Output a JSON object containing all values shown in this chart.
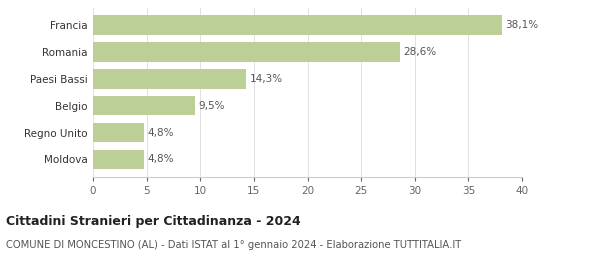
{
  "categories": [
    "Moldova",
    "Regno Unito",
    "Belgio",
    "Paesi Bassi",
    "Romania",
    "Francia"
  ],
  "values": [
    4.8,
    4.8,
    9.5,
    14.3,
    28.6,
    38.1
  ],
  "labels": [
    "4,8%",
    "4,8%",
    "9,5%",
    "14,3%",
    "28,6%",
    "38,1%"
  ],
  "bar_color": "#bccf96",
  "background_color": "#ffffff",
  "xlim": [
    0,
    40
  ],
  "xticks": [
    0,
    5,
    10,
    15,
    20,
    25,
    30,
    35,
    40
  ],
  "title_bold": "Cittadini Stranieri per Cittadinanza - 2024",
  "subtitle": "COMUNE DI MONCESTINO (AL) - Dati ISTAT al 1° gennaio 2024 - Elaborazione TUTTITALIA.IT",
  "title_fontsize": 9.0,
  "subtitle_fontsize": 7.2,
  "label_fontsize": 7.5,
  "tick_fontsize": 7.5,
  "bar_height": 0.72
}
